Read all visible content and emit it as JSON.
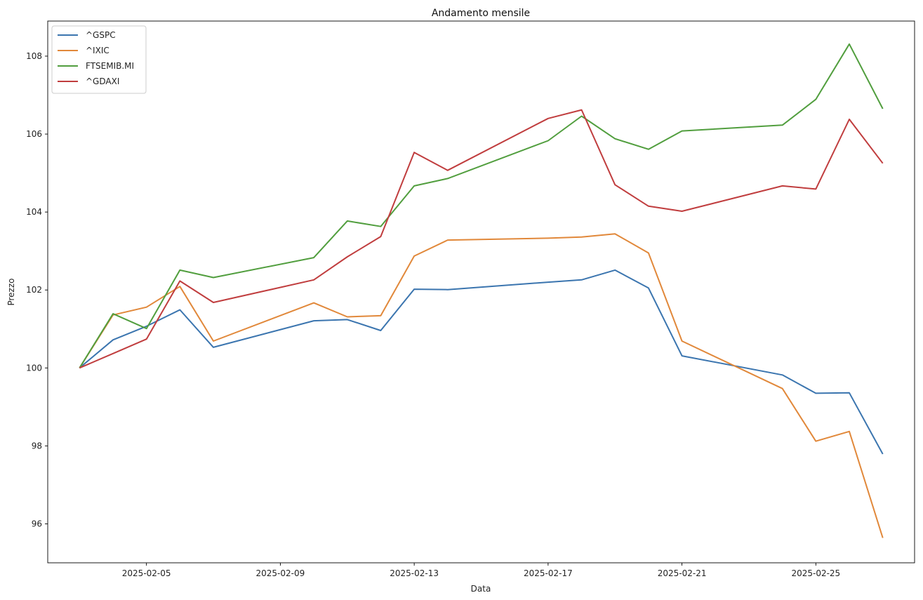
{
  "chart_data": {
    "type": "line",
    "title": "Andamento mensile",
    "xlabel": "Data",
    "ylabel": "Prezzo",
    "x": [
      "2025-02-03",
      "2025-02-04",
      "2025-02-05",
      "2025-02-06",
      "2025-02-07",
      "2025-02-10",
      "2025-02-11",
      "2025-02-12",
      "2025-02-13",
      "2025-02-14",
      "2025-02-17",
      "2025-02-18",
      "2025-02-19",
      "2025-02-20",
      "2025-02-21",
      "2025-02-24",
      "2025-02-25",
      "2025-02-26",
      "2025-02-27"
    ],
    "x_ticks": [
      "2025-02-05",
      "2025-02-09",
      "2025-02-13",
      "2025-02-17",
      "2025-02-21",
      "2025-02-25"
    ],
    "y_ticks": [
      96,
      98,
      100,
      102,
      104,
      106,
      108
    ],
    "xlim": [
      "2025-02-02T01:12",
      "2025-02-27T22:48"
    ],
    "ylim": [
      95.0,
      108.9
    ],
    "grid": false,
    "legend_position": "top-left",
    "series": [
      {
        "name": "^GSPC",
        "color": "#3b75af",
        "values": [
          100.0,
          100.72,
          101.07,
          101.49,
          100.53,
          101.21,
          101.24,
          100.96,
          102.02,
          102.01,
          102.2,
          102.26,
          102.51,
          102.05,
          100.31,
          99.82,
          99.35,
          99.36,
          97.79
        ]
      },
      {
        "name": "^IXIC",
        "color": "#e1883a",
        "values": [
          100.0,
          101.36,
          101.56,
          102.09,
          100.69,
          101.67,
          101.31,
          101.34,
          102.87,
          103.28,
          103.33,
          103.36,
          103.44,
          102.95,
          100.69,
          99.47,
          98.12,
          98.37,
          95.64
        ]
      },
      {
        "name": "FTSEMIB.MI",
        "color": "#519e3e",
        "values": [
          100.0,
          101.39,
          101.01,
          102.51,
          102.32,
          102.83,
          103.77,
          103.63,
          104.67,
          104.86,
          105.83,
          106.46,
          105.88,
          105.61,
          106.08,
          106.23,
          106.89,
          108.31,
          106.65
        ]
      },
      {
        "name": "^GDAXI",
        "color": "#c03d3e",
        "values": [
          100.0,
          100.37,
          100.74,
          102.23,
          101.68,
          102.26,
          102.85,
          103.37,
          105.53,
          105.07,
          106.4,
          106.62,
          104.7,
          104.15,
          104.02,
          104.67,
          104.59,
          106.38,
          105.25
        ]
      }
    ]
  }
}
